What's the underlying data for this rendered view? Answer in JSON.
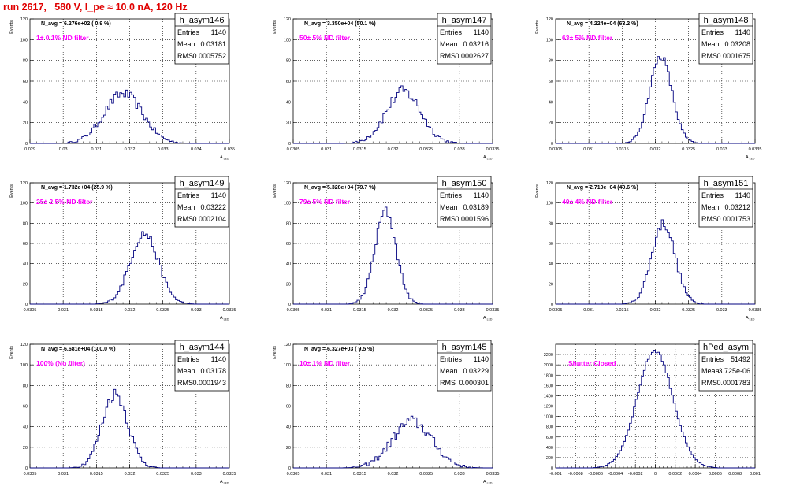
{
  "title": "run 2617,   580 V, I_pe ≈ 10.0 nA, 120 Hz",
  "chart_data": [
    {
      "type": "histogram",
      "name": "h_asym146",
      "stats": {
        "entries": "1140",
        "mean": "0.03181",
        "rms": "0.0005752"
      },
      "navg": "N_avg = 6.276e+02 ( 0.9 %)",
      "filter": "1± 0.1% ND filter",
      "xlim": [
        0.029,
        0.035
      ],
      "ylim": [
        0,
        120
      ],
      "xticks": [
        "0.029",
        "0.03",
        "0.031",
        "0.032",
        "0.033",
        "0.034",
        "0.035"
      ],
      "yticks": [
        "0",
        "20",
        "40",
        "60",
        "80",
        "100",
        "120"
      ],
      "xlabel": "A_LED",
      "ylabel": "Events",
      "shape": {
        "mu": 0.03181,
        "sigma": 0.0005752,
        "peak": 48,
        "noise": 5
      }
    },
    {
      "type": "histogram",
      "name": "h_asym147",
      "stats": {
        "entries": "1140",
        "mean": "0.03216",
        "rms": "0.0002627"
      },
      "navg": "N_avg = 3.350e+04 (50.1 %)",
      "filter": "50± 5% ND filter",
      "xlim": [
        0.0305,
        0.0335
      ],
      "ylim": [
        0,
        120
      ],
      "xticks": [
        "0.0305",
        "0.031",
        "0.0315",
        "0.032",
        "0.0325",
        "0.033",
        "0.0335"
      ],
      "yticks": [
        "0",
        "20",
        "40",
        "60",
        "80",
        "100",
        "120"
      ],
      "xlabel": "A_LED",
      "ylabel": "Events",
      "shape": {
        "mu": 0.03216,
        "sigma": 0.0002627,
        "peak": 50,
        "noise": 6
      }
    },
    {
      "type": "histogram",
      "name": "h_asym148",
      "stats": {
        "entries": "1140",
        "mean": "0.03208",
        "rms": "0.0001675"
      },
      "navg": "N_avg = 4.224e+04 (63.2 %)",
      "filter": "63± 5% ND filter",
      "xlim": [
        0.0305,
        0.0335
      ],
      "ylim": [
        0,
        120
      ],
      "xticks": [
        "0.0305",
        "0.031",
        "0.0315",
        "0.032",
        "0.0325",
        "0.033",
        "0.0335"
      ],
      "yticks": [
        "0",
        "20",
        "40",
        "60",
        "80",
        "100",
        "120"
      ],
      "xlabel": "A_LED",
      "ylabel": "Events",
      "shape": {
        "mu": 0.03208,
        "sigma": 0.0001675,
        "peak": 84,
        "noise": 4
      }
    },
    {
      "type": "histogram",
      "name": "h_asym149",
      "stats": {
        "entries": "1140",
        "mean": "0.03222",
        "rms": "0.0002104"
      },
      "navg": "N_avg = 1.732e+04 (25.9 %)",
      "filter": "25± 2.5% ND filter",
      "xlim": [
        0.0305,
        0.0335
      ],
      "ylim": [
        0,
        120
      ],
      "xticks": [
        "0.0305",
        "0.031",
        "0.0315",
        "0.032",
        "0.0325",
        "0.033",
        "0.0335"
      ],
      "yticks": [
        "0",
        "20",
        "40",
        "60",
        "80",
        "100",
        "120"
      ],
      "xlabel": "A_LED",
      "ylabel": "Events",
      "shape": {
        "mu": 0.03222,
        "sigma": 0.0002104,
        "peak": 70,
        "noise": 5
      }
    },
    {
      "type": "histogram",
      "name": "h_asym150",
      "stats": {
        "entries": "1140",
        "mean": "0.03189",
        "rms": "0.0001596"
      },
      "navg": "N_avg = 5.328e+04 (79.7 %)",
      "filter": "79± 5% ND filter",
      "xlim": [
        0.0305,
        0.0335
      ],
      "ylim": [
        0,
        120
      ],
      "xticks": [
        "0.0305",
        "0.031",
        "0.0315",
        "0.032",
        "0.0325",
        "0.033",
        "0.0335"
      ],
      "yticks": [
        "0",
        "20",
        "40",
        "60",
        "80",
        "100",
        "120"
      ],
      "xlabel": "A_LED",
      "ylabel": "Events",
      "shape": {
        "mu": 0.03189,
        "sigma": 0.0001596,
        "peak": 92,
        "noise": 5
      }
    },
    {
      "type": "histogram",
      "name": "h_asym151",
      "stats": {
        "entries": "1140",
        "mean": "0.03212",
        "rms": "0.0001753"
      },
      "navg": "N_avg = 2.710e+04 (40.6 %)",
      "filter": "40± 4% ND filter",
      "xlim": [
        0.0305,
        0.0335
      ],
      "ylim": [
        0,
        120
      ],
      "xticks": [
        "0.0305",
        "0.031",
        "0.0315",
        "0.032",
        "0.0325",
        "0.033",
        "0.0335"
      ],
      "yticks": [
        "0",
        "20",
        "40",
        "60",
        "80",
        "100",
        "120"
      ],
      "xlabel": "A_LED",
      "ylabel": "Events",
      "shape": {
        "mu": 0.03212,
        "sigma": 0.0001753,
        "peak": 80,
        "noise": 5
      }
    },
    {
      "type": "histogram",
      "name": "h_asym144",
      "stats": {
        "entries": "1140",
        "mean": "0.03178",
        "rms": "0.0001943"
      },
      "navg": "N_avg = 6.681e+04 (100.0 %)",
      "filter": "100% (No filter)",
      "xlim": [
        0.0305,
        0.0335
      ],
      "ylim": [
        0,
        120
      ],
      "xticks": [
        "0.0305",
        "0.031",
        "0.0315",
        "0.032",
        "0.0325",
        "0.033",
        "0.0335"
      ],
      "yticks": [
        "0",
        "20",
        "40",
        "60",
        "80",
        "100",
        "120"
      ],
      "xlabel": "A_LED",
      "ylabel": "Events",
      "shape": {
        "mu": 0.03178,
        "sigma": 0.0001943,
        "peak": 72,
        "noise": 6
      }
    },
    {
      "type": "histogram",
      "name": "h_asym145",
      "stats": {
        "entries": "1140",
        "mean": "0.03229",
        "rms": "0.000301"
      },
      "navg": "N_avg = 6.327e+03 ( 9.5 %)",
      "filter": "10± 1% ND filter",
      "xlim": [
        0.0305,
        0.0335
      ],
      "ylim": [
        0,
        120
      ],
      "xticks": [
        "0.0305",
        "0.031",
        "0.0315",
        "0.032",
        "0.0325",
        "0.033",
        "0.0335"
      ],
      "yticks": [
        "0",
        "20",
        "40",
        "60",
        "80",
        "100",
        "120"
      ],
      "xlabel": "A_LED",
      "ylabel": "Events",
      "shape": {
        "mu": 0.03229,
        "sigma": 0.000301,
        "peak": 45,
        "noise": 6
      }
    },
    {
      "type": "histogram",
      "name": "hPed_asym",
      "stats": {
        "entries": "51492",
        "mean": "-3.725e-06",
        "rms": "0.0001783"
      },
      "navg": "",
      "filter": "Shutter Closed",
      "xlim": [
        -0.001,
        0.001
      ],
      "ylim": [
        0,
        2400
      ],
      "xticks": [
        "-0.001",
        "-0.0008",
        "-0.0006",
        "-0.0004",
        "-0.0002",
        "0",
        "0.0002",
        "0.0004",
        "0.0006",
        "0.0008",
        "0.001"
      ],
      "yticks": [
        "0",
        "200",
        "400",
        "600",
        "800",
        "1000",
        "1200",
        "1400",
        "1600",
        "1800",
        "2000",
        "2200"
      ],
      "xlabel": "",
      "ylabel": "",
      "shape": {
        "mu": -3.725e-06,
        "sigma": 0.0001783,
        "peak": 2280,
        "noise": 40
      }
    }
  ]
}
